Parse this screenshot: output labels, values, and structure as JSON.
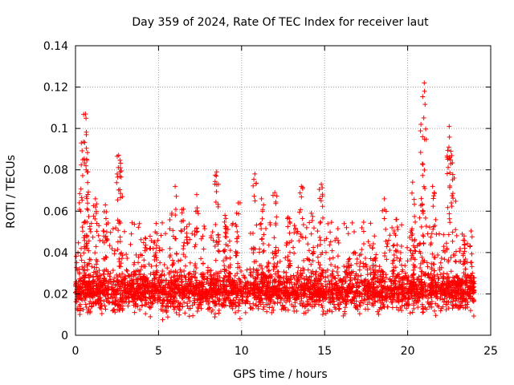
{
  "chart_data": {
    "type": "scatter",
    "title": "Day 359 of 2024, Rate Of TEC Index for receiver laut",
    "xlabel": "GPS time / hours",
    "ylabel": "ROTI / TECUs",
    "xlim": [
      0,
      25
    ],
    "ylim": [
      0,
      0.14
    ],
    "xticks": [
      0,
      5,
      10,
      15,
      20,
      25
    ],
    "xtick_labels": [
      "0",
      "5",
      "10",
      "15",
      "20",
      "25"
    ],
    "yticks": [
      0,
      0.02,
      0.04,
      0.06,
      0.08,
      0.1,
      0.12,
      0.14
    ],
    "ytick_labels": [
      "0",
      "0.02",
      "0.04",
      "0.06",
      "0.08",
      "0.1",
      "0.12",
      "0.14"
    ],
    "grid": true,
    "marker": "+",
    "series": [
      {
        "name": "ROTI",
        "color": "#ff0000",
        "x_range": [
          0,
          24
        ],
        "baseline_range": [
          0.005,
          0.03
        ],
        "peaks": [
          {
            "x": 0.05,
            "y": 0.025
          },
          {
            "x": 0.35,
            "y": 0.093
          },
          {
            "x": 0.6,
            "y": 0.107
          },
          {
            "x": 0.65,
            "y": 0.097
          },
          {
            "x": 0.75,
            "y": 0.079
          },
          {
            "x": 1.2,
            "y": 0.066
          },
          {
            "x": 1.8,
            "y": 0.063
          },
          {
            "x": 2.6,
            "y": 0.087
          },
          {
            "x": 2.7,
            "y": 0.081
          },
          {
            "x": 4.2,
            "y": 0.047
          },
          {
            "x": 4.8,
            "y": 0.05
          },
          {
            "x": 5.8,
            "y": 0.059
          },
          {
            "x": 6.0,
            "y": 0.072
          },
          {
            "x": 6.5,
            "y": 0.061
          },
          {
            "x": 7.3,
            "y": 0.068
          },
          {
            "x": 8.5,
            "y": 0.079
          },
          {
            "x": 8.6,
            "y": 0.073
          },
          {
            "x": 9.0,
            "y": 0.058
          },
          {
            "x": 9.8,
            "y": 0.064
          },
          {
            "x": 10.8,
            "y": 0.078
          },
          {
            "x": 11.2,
            "y": 0.066
          },
          {
            "x": 12.0,
            "y": 0.069
          },
          {
            "x": 12.8,
            "y": 0.057
          },
          {
            "x": 13.6,
            "y": 0.072
          },
          {
            "x": 14.2,
            "y": 0.059
          },
          {
            "x": 14.8,
            "y": 0.073
          },
          {
            "x": 16.5,
            "y": 0.037
          },
          {
            "x": 18.0,
            "y": 0.048
          },
          {
            "x": 18.6,
            "y": 0.066
          },
          {
            "x": 19.3,
            "y": 0.056
          },
          {
            "x": 20.3,
            "y": 0.074
          },
          {
            "x": 20.8,
            "y": 0.102
          },
          {
            "x": 20.9,
            "y": 0.096
          },
          {
            "x": 21.0,
            "y": 0.122
          },
          {
            "x": 21.5,
            "y": 0.072
          },
          {
            "x": 21.6,
            "y": 0.069
          },
          {
            "x": 22.5,
            "y": 0.101
          },
          {
            "x": 22.6,
            "y": 0.089
          },
          {
            "x": 22.8,
            "y": 0.076
          },
          {
            "x": 23.4,
            "y": 0.048
          },
          {
            "x": 23.9,
            "y": 0.03
          }
        ]
      }
    ]
  }
}
